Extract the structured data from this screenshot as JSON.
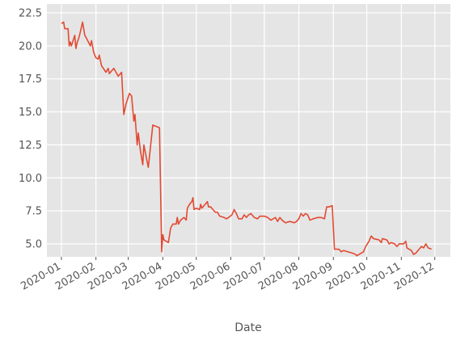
{
  "chart_data": {
    "type": "line",
    "x_label": "Date",
    "color": "#E24A33",
    "grid": true,
    "x": [
      "2020-01-01",
      "2020-01-03",
      "2020-01-04",
      "2020-01-07",
      "2020-01-08",
      "2020-01-09",
      "2020-01-10",
      "2020-01-13",
      "2020-01-14",
      "2020-01-15",
      "2020-01-17",
      "2020-01-20",
      "2020-01-22",
      "2020-01-24",
      "2020-01-27",
      "2020-01-28",
      "2020-01-30",
      "2020-02-01",
      "2020-02-03",
      "2020-02-04",
      "2020-02-06",
      "2020-02-10",
      "2020-02-12",
      "2020-02-13",
      "2020-02-17",
      "2020-02-19",
      "2020-02-21",
      "2020-02-24",
      "2020-02-26",
      "2020-02-28",
      "2020-03-02",
      "2020-03-04",
      "2020-03-06",
      "2020-03-07",
      "2020-03-09",
      "2020-03-10",
      "2020-03-12",
      "2020-03-14",
      "2020-03-15",
      "2020-03-18",
      "2020-03-19",
      "2020-03-23",
      "2020-03-29",
      "2020-03-31",
      "2020-04-01",
      "2020-04-02",
      "2020-04-06",
      "2020-04-08",
      "2020-04-10",
      "2020-04-13",
      "2020-04-14",
      "2020-04-15",
      "2020-04-17",
      "2020-04-20",
      "2020-04-22",
      "2020-04-23",
      "2020-04-25",
      "2020-04-27",
      "2020-04-28",
      "2020-04-29",
      "2020-05-01",
      "2020-05-04",
      "2020-05-05",
      "2020-05-06",
      "2020-05-08",
      "2020-05-11",
      "2020-05-12",
      "2020-05-14",
      "2020-05-18",
      "2020-05-20",
      "2020-05-22",
      "2020-05-26",
      "2020-05-28",
      "2020-05-30",
      "2020-06-02",
      "2020-06-04",
      "2020-06-06",
      "2020-06-08",
      "2020-06-11",
      "2020-06-13",
      "2020-06-15",
      "2020-06-17",
      "2020-06-19",
      "2020-06-22",
      "2020-06-25",
      "2020-06-27",
      "2020-07-01",
      "2020-07-04",
      "2020-07-07",
      "2020-07-09",
      "2020-07-11",
      "2020-07-13",
      "2020-07-15",
      "2020-07-17",
      "2020-07-20",
      "2020-07-24",
      "2020-07-28",
      "2020-07-30",
      "2020-08-01",
      "2020-08-03",
      "2020-08-05",
      "2020-08-07",
      "2020-08-09",
      "2020-08-11",
      "2020-08-14",
      "2020-08-18",
      "2020-08-21",
      "2020-08-24",
      "2020-08-26",
      "2020-08-28",
      "2020-08-31",
      "2020-09-02",
      "2020-09-06",
      "2020-09-08",
      "2020-09-10",
      "2020-09-14",
      "2020-09-18",
      "2020-09-21",
      "2020-09-22",
      "2020-09-24",
      "2020-09-28",
      "2020-09-30",
      "2020-10-03",
      "2020-10-05",
      "2020-10-07",
      "2020-10-12",
      "2020-10-14",
      "2020-10-15",
      "2020-10-19",
      "2020-10-21",
      "2020-10-23",
      "2020-10-26",
      "2020-10-28",
      "2020-10-30",
      "2020-11-03",
      "2020-11-05",
      "2020-11-06",
      "2020-11-10",
      "2020-11-12",
      "2020-11-14",
      "2020-11-17",
      "2020-11-19",
      "2020-11-21",
      "2020-11-23",
      "2020-11-25",
      "2020-11-28"
    ],
    "values": [
      21.7,
      21.8,
      21.3,
      21.3,
      20.0,
      20.3,
      20.0,
      20.8,
      19.8,
      20.2,
      20.7,
      21.8,
      20.8,
      20.5,
      20.0,
      20.4,
      19.5,
      19.1,
      19.0,
      19.3,
      18.5,
      18.0,
      18.3,
      17.9,
      18.3,
      18.0,
      17.7,
      18.0,
      14.8,
      15.6,
      16.4,
      16.2,
      14.3,
      14.8,
      12.5,
      13.4,
      12.0,
      11.0,
      12.5,
      11.2,
      10.8,
      14.0,
      13.8,
      4.4,
      5.7,
      5.3,
      5.1,
      6.2,
      6.5,
      6.5,
      7.0,
      6.5,
      6.8,
      7.0,
      6.8,
      7.7,
      8.0,
      8.2,
      8.5,
      7.6,
      7.7,
      7.6,
      8.0,
      7.7,
      7.9,
      8.2,
      7.8,
      7.8,
      7.4,
      7.4,
      7.1,
      7.0,
      6.9,
      7.0,
      7.2,
      7.6,
      7.3,
      6.9,
      6.9,
      7.2,
      7.0,
      7.2,
      7.3,
      7.0,
      6.9,
      7.1,
      7.1,
      7.0,
      6.8,
      6.9,
      7.0,
      6.7,
      7.0,
      6.8,
      6.6,
      6.7,
      6.6,
      6.7,
      6.9,
      7.3,
      7.1,
      7.3,
      7.2,
      6.8,
      6.9,
      7.0,
      7.0,
      6.9,
      7.8,
      7.8,
      7.9,
      4.6,
      4.6,
      4.4,
      4.5,
      4.4,
      4.3,
      4.2,
      4.1,
      4.2,
      4.4,
      4.8,
      5.2,
      5.6,
      5.4,
      5.3,
      5.1,
      5.4,
      5.3,
      5.0,
      5.1,
      5.0,
      4.8,
      5.0,
      5.0,
      5.2,
      4.7,
      4.5,
      4.2,
      4.3,
      4.6,
      4.8,
      4.7,
      5.0,
      4.7,
      4.6
    ],
    "xlim": [
      "2019-12-19",
      "2020-12-15"
    ],
    "xticks": [
      {
        "value": "2020-01-01",
        "label": "2020-01"
      },
      {
        "value": "2020-02-01",
        "label": "2020-02"
      },
      {
        "value": "2020-03-01",
        "label": "2020-03"
      },
      {
        "value": "2020-04-01",
        "label": "2020-04"
      },
      {
        "value": "2020-05-01",
        "label": "2020-05"
      },
      {
        "value": "2020-06-01",
        "label": "2020-06"
      },
      {
        "value": "2020-07-01",
        "label": "2020-07"
      },
      {
        "value": "2020-08-01",
        "label": "2020-08"
      },
      {
        "value": "2020-09-01",
        "label": "2020-09"
      },
      {
        "value": "2020-10-01",
        "label": "2020-10"
      },
      {
        "value": "2020-11-01",
        "label": "2020-11"
      },
      {
        "value": "2020-12-01",
        "label": "2020-12"
      }
    ],
    "ylim": [
      4.02,
      23.17
    ],
    "yticks": [
      {
        "value": 5,
        "label": "5.0"
      },
      {
        "value": 7.5,
        "label": "7.5"
      },
      {
        "value": 10,
        "label": "10.0"
      },
      {
        "value": 12.5,
        "label": "12.5"
      },
      {
        "value": 15,
        "label": "15.0"
      },
      {
        "value": 17.5,
        "label": "17.5"
      },
      {
        "value": 20,
        "label": "20.0"
      },
      {
        "value": 22.5,
        "label": "22.5"
      }
    ]
  }
}
